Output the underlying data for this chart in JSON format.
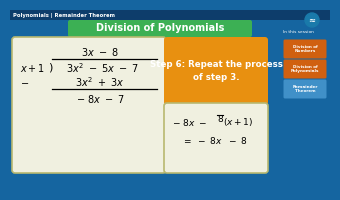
{
  "bg_color": "#1565a0",
  "title_text": "Division of Polynomials",
  "title_bg": "#3cb054",
  "title_fg": "white",
  "header_text": "Polynomials | Remainder Theorem",
  "header_fg": "white",
  "header_bg": "#0d3d6b",
  "left_box_bg": "#f0f0e0",
  "left_box_border": "#b8b870",
  "right_top_box_bg": "#e89010",
  "right_top_box_fg": "white",
  "right_bot_box_bg": "#f0f0e0",
  "right_bot_box_border": "#b8b870",
  "step_text": "Step 6: Repeat the process\nof step 3.",
  "sidebar_label": "In this session",
  "sidebar_btn1_bg": "#d06010",
  "sidebar_btn1_text": "Division of\nNumbers",
  "sidebar_btn2_bg": "#d06010",
  "sidebar_btn2_text": "Division of\nPolynomials",
  "sidebar_btn3_bg": "#4090c8",
  "sidebar_btn3_text": "Remainder\nTheorem",
  "logo_color": "#1a7aaa"
}
